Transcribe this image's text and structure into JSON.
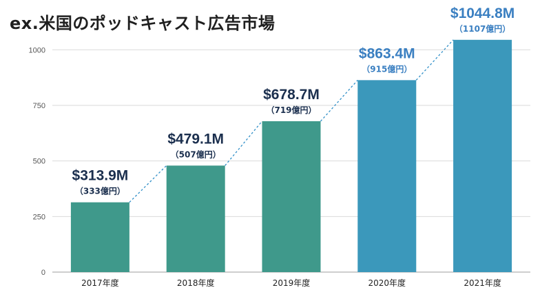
{
  "title": "ex.米国のポッドキャスト広告市場",
  "chart_data": {
    "type": "bar",
    "categories": [
      "2017年度",
      "2018年度",
      "2019年度",
      "2020年度",
      "2021年度"
    ],
    "values": [
      313.9,
      479.1,
      678.7,
      863.4,
      1044.8
    ],
    "value_labels": [
      "$313.9M",
      "$479.1M",
      "$678.7M",
      "$863.4M",
      "$1044.8M"
    ],
    "sub_labels": [
      "（333億円）",
      "（507億円）",
      "（719億円）",
      "（915億円）",
      "（1107億円）"
    ],
    "bar_colors": [
      "#3f998b",
      "#3f998b",
      "#3f998b",
      "#3b98bb",
      "#3b98bb"
    ],
    "label_colors": [
      "#1b2f4e",
      "#1b2f4e",
      "#1b2f4e",
      "#3a7fc1",
      "#3a7fc1"
    ],
    "yticks": [
      0,
      250,
      500,
      750,
      1000
    ],
    "ylim": [
      0,
      1100
    ],
    "grid": true,
    "trend_line": "dashed",
    "trend_color": "#2f8fc8",
    "gridline_color": "#d9d9d9"
  }
}
